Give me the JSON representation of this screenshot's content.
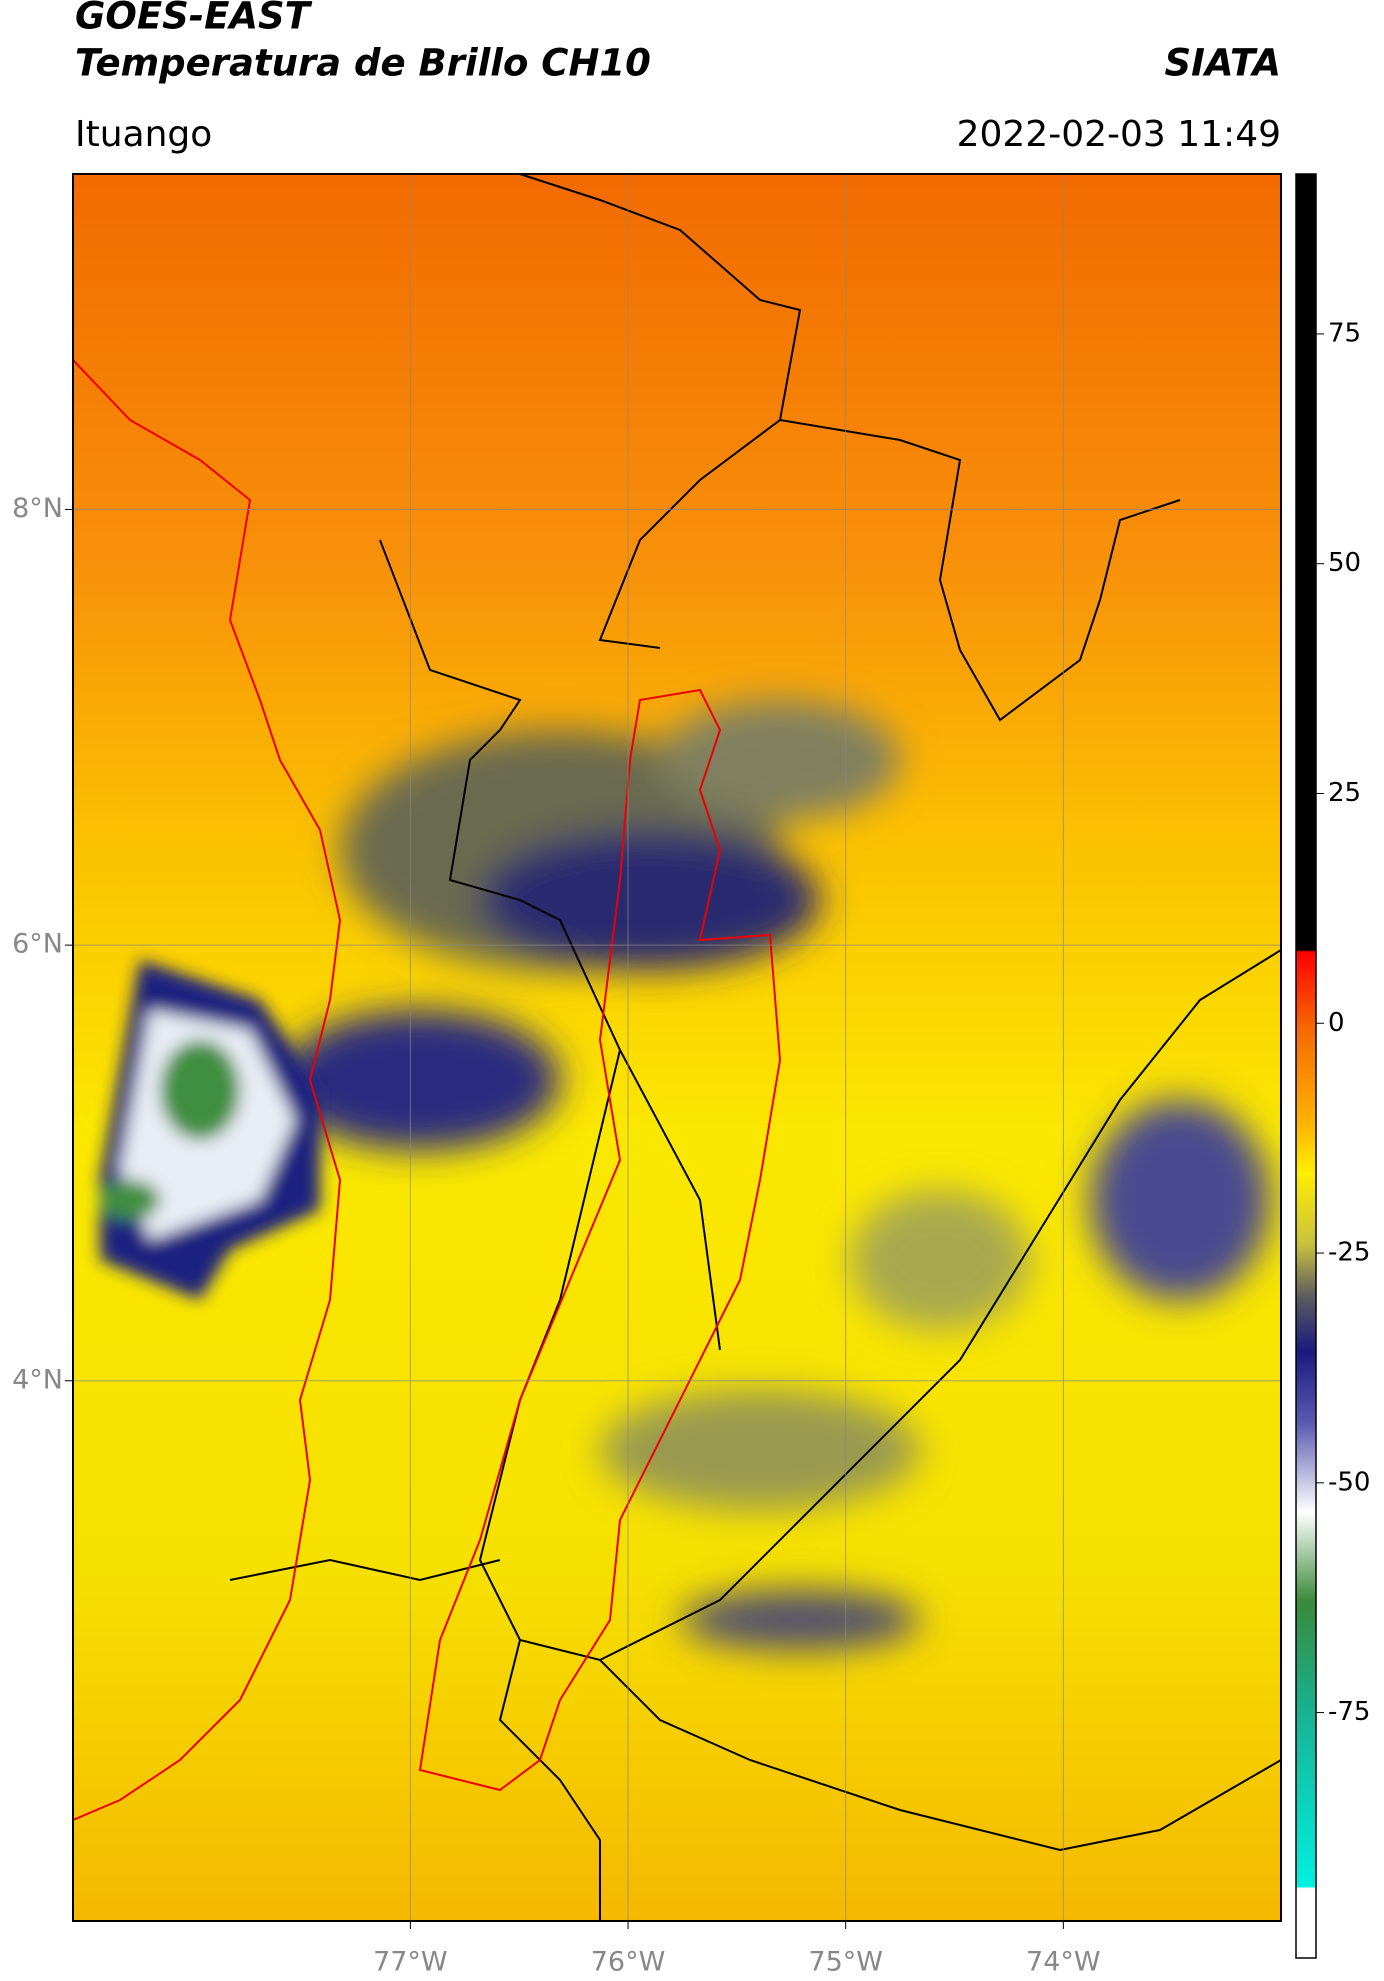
{
  "chart_data": {
    "type": "map",
    "title": "GOES-EAST",
    "subtitle": "Temperatura de Brillo CH10",
    "source": "SIATA",
    "location": "Ituango",
    "timestamp": "2022-02-03 11:49",
    "xlim": [
      -78.55,
      -73.0
    ],
    "ylim": [
      1.52,
      9.54
    ],
    "xticks": [
      {
        "value": -77,
        "label": "77°W"
      },
      {
        "value": -76,
        "label": "76°W"
      },
      {
        "value": -75,
        "label": "75°W"
      },
      {
        "value": -74,
        "label": "74°W"
      }
    ],
    "yticks": [
      {
        "value": 8,
        "label": "8°N"
      },
      {
        "value": 6,
        "label": "6°N"
      },
      {
        "value": 4,
        "label": "4°N"
      }
    ],
    "grid": true,
    "colorbar": {
      "clim": [
        -101.7,
        92.4
      ],
      "ticks": [
        75,
        50,
        25,
        0,
        -25,
        -50,
        -75
      ]
    }
  }
}
